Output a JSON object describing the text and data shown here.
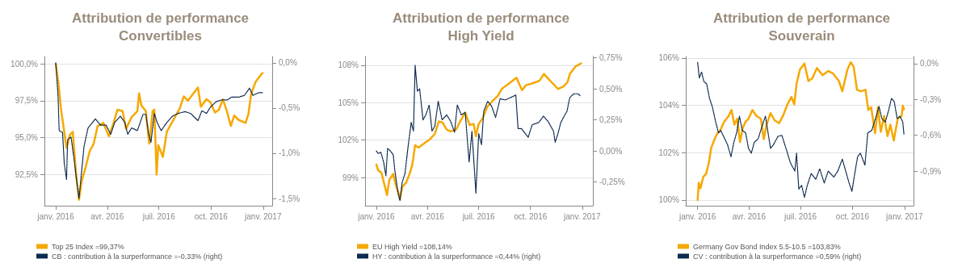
{
  "chart_data": [
    {
      "type": "line",
      "title": "Attribution de performance\nConvertibles",
      "xlim": [
        "2015-12-12",
        "2017-01-17"
      ],
      "xticks": [
        {
          "value": "2016-01-01",
          "label": "janv. 2016"
        },
        {
          "value": "2016-04-01",
          "label": "avr. 2016"
        },
        {
          "value": "2016-07-01",
          "label": "juil. 2016"
        },
        {
          "value": "2016-10-01",
          "label": "oct. 2016"
        },
        {
          "value": "2017-01-01",
          "label": "janv. 2017"
        }
      ],
      "ylim": [
        90.4,
        100.5
      ],
      "yticks": [
        {
          "value": 100,
          "label": "100,0%"
        },
        {
          "value": 97.5,
          "label": "97,5%"
        },
        {
          "value": 95,
          "label": "95,0%"
        },
        {
          "value": 92.5,
          "label": "92,5%"
        }
      ],
      "y2lim": [
        -1.58,
        0.07
      ],
      "y2ticks": [
        {
          "value": 0,
          "label": "0,0%"
        },
        {
          "value": -0.5,
          "label": "-0,5%"
        },
        {
          "value": -1,
          "label": "-1,0%"
        },
        {
          "value": -1.5,
          "label": "-1,5%"
        }
      ],
      "grid": "y",
      "legend": "bottom",
      "marker": "none",
      "series": [
        {
          "name": "Top 25 Index =99,37%",
          "color": "#f5a800",
          "line_style": "solid",
          "x": [
            "2016-01-01",
            "2016-01-06",
            "2016-01-10",
            "2016-01-16",
            "2016-01-20",
            "2016-01-26",
            "2016-01-31",
            "2016-02-06",
            "2016-02-11",
            "2016-02-16",
            "2016-02-22",
            "2016-03-01",
            "2016-03-08",
            "2016-03-15",
            "2016-03-25",
            "2016-04-04",
            "2016-04-12",
            "2016-04-19",
            "2016-04-28",
            "2016-05-04",
            "2016-05-14",
            "2016-05-24",
            "2016-05-27",
            "2016-05-31",
            "2016-06-08",
            "2016-06-14",
            "2016-06-20",
            "2016-06-23",
            "2016-06-27",
            "2016-06-30",
            "2016-07-08",
            "2016-07-15",
            "2016-07-28",
            "2016-08-07",
            "2016-08-14",
            "2016-08-21",
            "2016-08-31",
            "2016-09-08",
            "2016-09-13",
            "2016-09-23",
            "2016-09-30",
            "2016-10-08",
            "2016-10-15",
            "2016-10-22",
            "2016-10-29",
            "2016-11-05",
            "2016-11-11",
            "2016-11-19",
            "2016-12-01",
            "2016-12-06",
            "2016-12-11",
            "2016-12-19",
            "2016-12-29",
            "2016-12-31"
          ],
          "values": [
            100.0,
            98.6,
            97.0,
            95.4,
            94.3,
            95.2,
            95.4,
            92.5,
            90.8,
            92.1,
            92.9,
            94.1,
            94.6,
            95.8,
            96.0,
            95.1,
            96.0,
            96.9,
            96.8,
            95.6,
            96.4,
            96.8,
            98.0,
            97.2,
            96.8,
            94.6,
            96.8,
            96.9,
            92.5,
            94.5,
            93.7,
            95.4,
            96.3,
            97.0,
            97.8,
            97.5,
            98.0,
            98.4,
            97.1,
            97.6,
            97.4,
            96.7,
            96.9,
            97.6,
            96.8,
            95.8,
            96.5,
            96.2,
            96.0,
            96.6,
            98.0,
            98.8,
            99.3,
            99.37
          ]
        },
        {
          "name": "CB : contribution à la surperformance =-0,33% (right)",
          "color": "#0d2a4f",
          "line_style": "dashed",
          "axis": "y2",
          "x": [
            "2016-01-01",
            "2016-01-05",
            "2016-01-07",
            "2016-01-13",
            "2016-01-16",
            "2016-01-20",
            "2016-01-22",
            "2016-01-28",
            "2016-02-02",
            "2016-02-07",
            "2016-02-11",
            "2016-02-15",
            "2016-02-20",
            "2016-02-27",
            "2016-03-11",
            "2016-03-20",
            "2016-03-30",
            "2016-04-07",
            "2016-04-14",
            "2016-04-24",
            "2016-05-02",
            "2016-05-07",
            "2016-05-14",
            "2016-05-24",
            "2016-06-03",
            "2016-06-08",
            "2016-06-13",
            "2016-06-17",
            "2016-06-23",
            "2016-06-28",
            "2016-07-05",
            "2016-07-15",
            "2016-07-25",
            "2016-08-04",
            "2016-08-16",
            "2016-08-26",
            "2016-09-08",
            "2016-09-15",
            "2016-09-23",
            "2016-09-30",
            "2016-10-10",
            "2016-10-20",
            "2016-10-30",
            "2016-11-06",
            "2016-11-19",
            "2016-11-29",
            "2016-12-08",
            "2016-12-14",
            "2016-12-24",
            "2016-12-31"
          ],
          "values": [
            0.0,
            -0.36,
            -0.75,
            -0.77,
            -1.11,
            -1.29,
            -0.85,
            -0.82,
            -1.05,
            -1.31,
            -1.5,
            -1.24,
            -0.92,
            -0.72,
            -0.62,
            -0.69,
            -0.69,
            -0.79,
            -0.66,
            -0.59,
            -0.66,
            -0.79,
            -0.72,
            -0.75,
            -0.57,
            -0.57,
            -0.79,
            -0.88,
            -0.56,
            -0.66,
            -0.75,
            -0.66,
            -0.59,
            -0.56,
            -0.54,
            -0.56,
            -0.64,
            -0.53,
            -0.56,
            -0.49,
            -0.43,
            -0.41,
            -0.41,
            -0.38,
            -0.38,
            -0.36,
            -0.28,
            -0.36,
            -0.33,
            -0.33
          ]
        }
      ]
    },
    {
      "type": "line",
      "title": "Attribution de performance\nHigh Yield",
      "xlim": [
        "2015-12-12",
        "2017-01-20"
      ],
      "xticks": [
        {
          "value": "2016-01-01",
          "label": "janv. 2016"
        },
        {
          "value": "2016-04-01",
          "label": "avr. 2016"
        },
        {
          "value": "2016-07-01",
          "label": "juil. 2016"
        },
        {
          "value": "2016-10-01",
          "label": "oct. 2016"
        },
        {
          "value": "2017-01-01",
          "label": "janv. 2017"
        }
      ],
      "ylim": [
        96.75,
        108.7
      ],
      "yticks": [
        {
          "value": 108,
          "label": "108%"
        },
        {
          "value": 105,
          "label": "105%"
        },
        {
          "value": 102,
          "label": "102%"
        },
        {
          "value": 99,
          "label": "99%"
        }
      ],
      "y2lim": [
        -0.44,
        0.76
      ],
      "y2ticks": [
        {
          "value": 0.75,
          "label": "0,75%"
        },
        {
          "value": 0.5,
          "label": "0,50%"
        },
        {
          "value": 0.25,
          "label": "0,25%"
        },
        {
          "value": 0,
          "label": "0,00%"
        },
        {
          "value": -0.25,
          "label": "-0,25%"
        }
      ],
      "grid": "y",
      "legend": "bottom",
      "marker": "none",
      "series": [
        {
          "name": "EU High Yield =108,14%",
          "color": "#f5a800",
          "line_style": "solid",
          "x": [
            "2016-01-01",
            "2016-01-04",
            "2016-01-10",
            "2016-01-15",
            "2016-01-20",
            "2016-01-24",
            "2016-01-31",
            "2016-02-04",
            "2016-02-09",
            "2016-02-12",
            "2016-02-16",
            "2016-02-23",
            "2016-03-01",
            "2016-03-05",
            "2016-03-10",
            "2016-03-16",
            "2016-03-25",
            "2016-04-06",
            "2016-04-14",
            "2016-04-21",
            "2016-04-28",
            "2016-05-05",
            "2016-05-12",
            "2016-05-22",
            "2016-05-29",
            "2016-06-07",
            "2016-06-15",
            "2016-06-22",
            "2016-06-26",
            "2016-07-01",
            "2016-07-08",
            "2016-07-16",
            "2016-07-25",
            "2016-08-04",
            "2016-08-11",
            "2016-08-20",
            "2016-08-30",
            "2016-09-06",
            "2016-09-16",
            "2016-09-23",
            "2016-10-05",
            "2016-10-17",
            "2016-10-25",
            "2016-11-02",
            "2016-11-19",
            "2016-11-29",
            "2016-12-06",
            "2016-12-10",
            "2016-12-20",
            "2016-12-30"
          ],
          "values": [
            100.05,
            99.6,
            99.4,
            98.5,
            97.6,
            98.8,
            99.3,
            98.5,
            97.8,
            97.25,
            98.25,
            98.6,
            99.4,
            100.05,
            101.6,
            101.4,
            101.7,
            102.1,
            102.5,
            103.5,
            103.4,
            102.85,
            102.7,
            102.85,
            103.5,
            104.2,
            103.2,
            103.3,
            102.3,
            103.3,
            103.75,
            104.65,
            105.1,
            105.55,
            106.1,
            106.4,
            106.75,
            107.0,
            106.0,
            106.4,
            106.55,
            106.75,
            107.3,
            106.9,
            106.1,
            106.3,
            106.65,
            107.3,
            107.9,
            108.14
          ]
        },
        {
          "name": "HY : contribution à la surperformance =0,44% (right)",
          "color": "#0d2a4f",
          "line_style": "dashed",
          "axis": "y2",
          "x": [
            "2016-01-01",
            "2016-01-04",
            "2016-01-09",
            "2016-01-14",
            "2016-01-18",
            "2016-01-21",
            "2016-01-26",
            "2016-01-31",
            "2016-02-03",
            "2016-02-08",
            "2016-02-12",
            "2016-02-16",
            "2016-02-21",
            "2016-02-26",
            "2016-03-03",
            "2016-03-07",
            "2016-03-10",
            "2016-03-14",
            "2016-03-18",
            "2016-03-24",
            "2016-03-29",
            "2016-04-04",
            "2016-04-09",
            "2016-04-14",
            "2016-04-20",
            "2016-04-27",
            "2016-05-05",
            "2016-05-12",
            "2016-05-19",
            "2016-05-24",
            "2016-05-31",
            "2016-06-07",
            "2016-06-14",
            "2016-06-19",
            "2016-06-26",
            "2016-07-01",
            "2016-07-06",
            "2016-07-10",
            "2016-07-17",
            "2016-07-24",
            "2016-07-31",
            "2016-08-08",
            "2016-08-17",
            "2016-08-27",
            "2016-09-05",
            "2016-09-09",
            "2016-09-15",
            "2016-09-27",
            "2016-10-04",
            "2016-10-16",
            "2016-10-24",
            "2016-11-01",
            "2016-11-11",
            "2016-11-14",
            "2016-11-19",
            "2016-11-24",
            "2016-12-05",
            "2016-12-10",
            "2016-12-17",
            "2016-12-25",
            "2016-12-29"
          ],
          "values": [
            0.0,
            -0.02,
            -0.01,
            -0.09,
            -0.2,
            0.02,
            0.0,
            -0.03,
            -0.16,
            -0.32,
            -0.4,
            -0.25,
            -0.18,
            0.02,
            0.23,
            0.16,
            0.69,
            0.48,
            0.5,
            0.25,
            0.29,
            0.37,
            0.16,
            0.2,
            0.4,
            0.25,
            0.29,
            0.24,
            0.15,
            0.37,
            0.29,
            0.31,
            -0.09,
            0.16,
            -0.34,
            0.14,
            0.05,
            0.32,
            0.4,
            0.36,
            0.27,
            0.42,
            0.41,
            0.43,
            0.45,
            0.18,
            0.18,
            0.11,
            0.21,
            0.23,
            0.28,
            0.24,
            0.16,
            0.07,
            0.14,
            0.23,
            0.32,
            0.43,
            0.46,
            0.46,
            0.44
          ]
        }
      ]
    },
    {
      "type": "line",
      "title": "Attribution de performance\nSouverain",
      "xlim": [
        "2015-12-11",
        "2017-01-17"
      ],
      "xticks": [
        {
          "value": "2016-01-01",
          "label": "janv. 2016"
        },
        {
          "value": "2016-04-01",
          "label": "avr. 2016"
        },
        {
          "value": "2016-07-01",
          "label": "juil. 2016"
        },
        {
          "value": "2016-10-01",
          "label": "oct. 2016"
        },
        {
          "value": "2017-01-01",
          "label": "janv. 2017"
        }
      ],
      "ylim": [
        99.76,
        106.06
      ],
      "yticks": [
        {
          "value": 106,
          "label": "106%"
        },
        {
          "value": 104,
          "label": "104%"
        },
        {
          "value": 102,
          "label": "102%"
        },
        {
          "value": 100,
          "label": "100%"
        }
      ],
      "y2lim": [
        -1.19,
        0.06
      ],
      "y2ticks": [
        {
          "value": 0,
          "label": "0,0%"
        },
        {
          "value": -0.3,
          "label": "-0,3%"
        },
        {
          "value": -0.6,
          "label": "-0,6%"
        },
        {
          "value": -0.9,
          "label": "-0,9%"
        }
      ],
      "grid": "y",
      "legend": "bottom",
      "marker": "none",
      "series": [
        {
          "name": "Germany Gov Bond Index 5.5-10.5 =103,83%",
          "color": "#f5a800",
          "line_style": "solid",
          "x": [
            "2016-01-01",
            "2016-01-03",
            "2016-01-06",
            "2016-01-11",
            "2016-01-16",
            "2016-01-21",
            "2016-01-25",
            "2016-01-31",
            "2016-02-05",
            "2016-02-10",
            "2016-02-17",
            "2016-02-25",
            "2016-03-01",
            "2016-03-06",
            "2016-03-11",
            "2016-03-16",
            "2016-03-21",
            "2016-03-26",
            "2016-03-31",
            "2016-04-07",
            "2016-04-14",
            "2016-04-22",
            "2016-04-27",
            "2016-05-02",
            "2016-05-09",
            "2016-05-16",
            "2016-05-24",
            "2016-05-31",
            "2016-06-08",
            "2016-06-15",
            "2016-06-20",
            "2016-06-24",
            "2016-06-30",
            "2016-07-08",
            "2016-07-15",
            "2016-07-22",
            "2016-07-30",
            "2016-08-09",
            "2016-08-19",
            "2016-08-28",
            "2016-09-07",
            "2016-09-13",
            "2016-09-22",
            "2016-09-28",
            "2016-10-03",
            "2016-10-09",
            "2016-10-16",
            "2016-10-24",
            "2016-10-29",
            "2016-11-03",
            "2016-11-10",
            "2016-11-15",
            "2016-11-20",
            "2016-11-26",
            "2016-12-02",
            "2016-12-07",
            "2016-12-13",
            "2016-12-20",
            "2016-12-27",
            "2016-12-29",
            "2016-12-31"
          ],
          "values": [
            100.0,
            100.73,
            100.49,
            100.98,
            101.1,
            101.59,
            102.2,
            102.57,
            102.82,
            102.94,
            103.31,
            103.55,
            103.8,
            103.18,
            103.43,
            102.45,
            103.06,
            103.31,
            103.43,
            103.8,
            103.55,
            103.43,
            102.57,
            103.18,
            103.67,
            103.37,
            103.24,
            103.55,
            104.04,
            104.35,
            104.04,
            104.9,
            105.51,
            105.76,
            105.02,
            105.14,
            105.57,
            105.27,
            105.45,
            105.33,
            105.02,
            104.59,
            105.51,
            105.82,
            105.63,
            104.65,
            104.59,
            104.65,
            103.8,
            103.92,
            102.82,
            103.92,
            102.88,
            103.55,
            102.7,
            103.18,
            102.51,
            103.43,
            103.55,
            103.98,
            103.83
          ]
        },
        {
          "name": "CV : contribution à la surperformance =0,59% (right)",
          "color": "#0d2a4f",
          "line_style": "dashed",
          "axis": "y2",
          "x": [
            "2016-01-01",
            "2016-01-04",
            "2016-01-08",
            "2016-01-12",
            "2016-01-17",
            "2016-01-22",
            "2016-01-27",
            "2016-02-02",
            "2016-02-07",
            "2016-02-11",
            "2016-02-16",
            "2016-02-23",
            "2016-02-29",
            "2016-03-05",
            "2016-03-10",
            "2016-03-15",
            "2016-03-20",
            "2016-03-26",
            "2016-03-31",
            "2016-04-05",
            "2016-04-10",
            "2016-04-17",
            "2016-04-25",
            "2016-04-30",
            "2016-05-04",
            "2016-05-09",
            "2016-05-14",
            "2016-05-22",
            "2016-05-29",
            "2016-06-06",
            "2016-06-13",
            "2016-06-21",
            "2016-06-24",
            "2016-06-28",
            "2016-07-03",
            "2016-07-08",
            "2016-07-13",
            "2016-07-20",
            "2016-07-28",
            "2016-08-04",
            "2016-08-12",
            "2016-08-19",
            "2016-08-29",
            "2016-09-05",
            "2016-09-13",
            "2016-09-19",
            "2016-09-25",
            "2016-09-30",
            "2016-10-05",
            "2016-10-10",
            "2016-10-15",
            "2016-10-23",
            "2016-10-28",
            "2016-11-04",
            "2016-11-12",
            "2016-11-17",
            "2016-11-22",
            "2016-11-28",
            "2016-12-04",
            "2016-12-09",
            "2016-12-14",
            "2016-12-19",
            "2016-12-24",
            "2016-12-29",
            "2016-12-31"
          ],
          "values": [
            0.01,
            -0.12,
            -0.07,
            -0.15,
            -0.17,
            -0.29,
            -0.36,
            -0.49,
            -0.58,
            -0.56,
            -0.61,
            -0.68,
            -0.78,
            -0.66,
            -0.58,
            -0.44,
            -0.56,
            -0.58,
            -0.71,
            -0.75,
            -0.66,
            -0.63,
            -0.51,
            -0.44,
            -0.56,
            -0.71,
            -0.68,
            -0.61,
            -0.6,
            -0.72,
            -0.83,
            -0.9,
            -0.75,
            -1.05,
            -1.02,
            -1.12,
            -1.02,
            -0.92,
            -0.97,
            -0.88,
            -1.0,
            -0.9,
            -0.95,
            -0.9,
            -0.8,
            -0.9,
            -1.0,
            -1.07,
            -0.92,
            -0.78,
            -0.75,
            -0.85,
            -0.58,
            -0.56,
            -0.44,
            -0.36,
            -0.46,
            -0.49,
            -0.39,
            -0.29,
            -0.32,
            -0.46,
            -0.44,
            -0.49,
            -0.59
          ]
        }
      ]
    }
  ]
}
